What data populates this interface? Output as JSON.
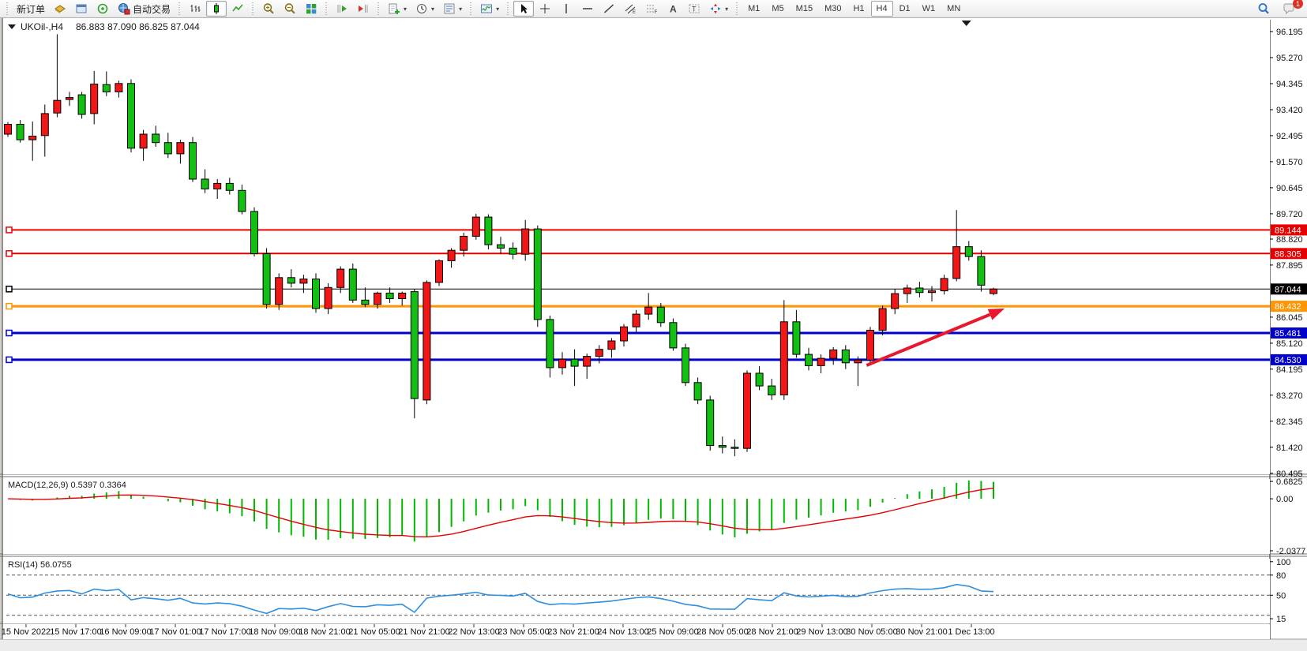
{
  "toolbar": {
    "groups": [
      {
        "items": [
          {
            "kind": "text",
            "label": "新订单",
            "name": "new-order-button"
          },
          {
            "kind": "icon",
            "icon": "market-watch",
            "name": "market-watch-button"
          },
          {
            "kind": "icon",
            "icon": "data-window",
            "name": "data-window-button"
          },
          {
            "kind": "icon",
            "icon": "signals",
            "name": "signals-button"
          },
          {
            "kind": "icontext",
            "icon": "autotrading",
            "label": "自动交易",
            "name": "autotrading-button"
          }
        ]
      },
      {
        "items": [
          {
            "kind": "icon",
            "icon": "bar-chart",
            "name": "bar-chart-button"
          },
          {
            "kind": "icon",
            "icon": "candlestick",
            "name": "candlestick-chart-button",
            "active": true
          },
          {
            "kind": "icon",
            "icon": "line-chart",
            "name": "line-chart-button"
          }
        ]
      },
      {
        "items": [
          {
            "kind": "icon",
            "icon": "zoom-in",
            "name": "zoom-in-button"
          },
          {
            "kind": "icon",
            "icon": "zoom-out",
            "name": "zoom-out-button"
          },
          {
            "kind": "icon",
            "icon": "tile-windows",
            "name": "tile-windows-button"
          }
        ]
      },
      {
        "items": [
          {
            "kind": "icon",
            "icon": "autoscroll",
            "name": "autoscroll-button"
          },
          {
            "kind": "icon",
            "icon": "chart-shift",
            "name": "chart-shift-button"
          }
        ]
      },
      {
        "items": [
          {
            "kind": "icon",
            "icon": "new-chart",
            "name": "new-chart-button",
            "dropdown": true
          },
          {
            "kind": "icon",
            "icon": "clock",
            "name": "periods-button",
            "dropdown": true
          },
          {
            "kind": "icon",
            "icon": "templates",
            "name": "templates-button",
            "dropdown": true
          }
        ]
      },
      {
        "items": [
          {
            "kind": "icon",
            "icon": "indicators",
            "name": "indicators-button",
            "dropdown": true
          }
        ]
      },
      {
        "items": [
          {
            "kind": "icon",
            "icon": "cursor",
            "name": "cursor-tool-button",
            "active": true
          },
          {
            "kind": "icon",
            "icon": "crosshair",
            "name": "crosshair-tool-button"
          },
          {
            "kind": "icon",
            "icon": "vertical-line",
            "name": "vertical-line-tool-button"
          },
          {
            "kind": "icon",
            "icon": "horizontal-line",
            "name": "horizontal-line-tool-button"
          },
          {
            "kind": "icon",
            "icon": "trendline",
            "name": "trendline-tool-button"
          },
          {
            "kind": "icon",
            "icon": "channel",
            "name": "channel-tool-button"
          },
          {
            "kind": "icon",
            "icon": "fibonacci",
            "name": "fibonacci-tool-button"
          },
          {
            "kind": "icon",
            "icon": "text",
            "name": "text-tool-button"
          },
          {
            "kind": "icon",
            "icon": "text-label",
            "name": "text-label-tool-button"
          },
          {
            "kind": "icon",
            "icon": "arrows",
            "name": "arrows-tool-button",
            "dropdown": true
          }
        ]
      },
      {
        "items": [
          {
            "kind": "tf",
            "label": "M1",
            "name": "timeframe-m1"
          },
          {
            "kind": "tf",
            "label": "M5",
            "name": "timeframe-m5"
          },
          {
            "kind": "tf",
            "label": "M15",
            "name": "timeframe-m15"
          },
          {
            "kind": "tf",
            "label": "M30",
            "name": "timeframe-m30"
          },
          {
            "kind": "tf",
            "label": "H1",
            "name": "timeframe-h1"
          },
          {
            "kind": "tf",
            "label": "H4",
            "name": "timeframe-h4",
            "active": true
          },
          {
            "kind": "tf",
            "label": "D1",
            "name": "timeframe-d1"
          },
          {
            "kind": "tf",
            "label": "W1",
            "name": "timeframe-w1"
          },
          {
            "kind": "tf",
            "label": "MN",
            "name": "timeframe-mn"
          }
        ]
      }
    ],
    "right": [
      {
        "kind": "icon",
        "icon": "search",
        "name": "search-button"
      },
      {
        "kind": "icon",
        "icon": "chat",
        "name": "chat-button",
        "badge": "1"
      }
    ]
  },
  "chart_window": {
    "symbol": "UKOil-,H4",
    "ohlc_text": "86.883 87.090 86.825 87.044"
  },
  "chart_data": {
    "type": "candlestick",
    "symbol": "UKOil-",
    "timeframe": "H4",
    "title": "UKOil-,H4 86.883 87.090 86.825 87.044",
    "ohlc_current": {
      "open": 86.883,
      "high": 87.09,
      "low": 86.825,
      "close": 87.044
    },
    "up_color": "#f21616",
    "down_color": "#12bf12",
    "ylim": [
      80.46,
      96.42
    ],
    "y_ticks": [
      96.195,
      95.27,
      94.345,
      93.42,
      92.495,
      91.57,
      90.645,
      89.72,
      88.82,
      87.895,
      86.045,
      85.12,
      84.195,
      83.27,
      82.345,
      81.42,
      80.495
    ],
    "x_labels": [
      "15 Nov 2022",
      "15 Nov 17:00",
      "16 Nov 09:00",
      "17 Nov 01:00",
      "17 Nov 17:00",
      "18 Nov 09:00",
      "18 Nov 21:00",
      "21 Nov 05:00",
      "21 Nov 21:00",
      "22 Nov 13:00",
      "23 Nov 05:00",
      "23 Nov 21:00",
      "24 Nov 13:00",
      "25 Nov 09:00",
      "28 Nov 05:00",
      "28 Nov 21:00",
      "29 Nov 13:00",
      "30 Nov 05:00",
      "30 Nov 21:00",
      "1 Dec 13:00"
    ],
    "candles": [
      [
        92.55,
        92.98,
        92.45,
        92.9
      ],
      [
        92.9,
        93.05,
        92.25,
        92.35
      ],
      [
        92.35,
        93.0,
        91.6,
        92.48
      ],
      [
        92.5,
        93.6,
        91.75,
        93.28
      ],
      [
        93.3,
        96.1,
        93.15,
        93.75
      ],
      [
        93.78,
        94.05,
        93.55,
        93.85
      ],
      [
        93.95,
        94.05,
        93.1,
        93.25
      ],
      [
        93.28,
        94.8,
        92.9,
        94.33
      ],
      [
        94.31,
        94.78,
        93.9,
        94.05
      ],
      [
        94.05,
        94.45,
        93.85,
        94.35
      ],
      [
        94.35,
        94.5,
        91.9,
        92.05
      ],
      [
        92.05,
        92.7,
        91.6,
        92.55
      ],
      [
        92.55,
        92.85,
        92.1,
        92.25
      ],
      [
        92.25,
        92.6,
        91.7,
        91.85
      ],
      [
        91.85,
        92.35,
        91.5,
        92.25
      ],
      [
        92.25,
        92.45,
        90.85,
        90.95
      ],
      [
        90.95,
        91.3,
        90.45,
        90.6
      ],
      [
        90.6,
        90.95,
        90.25,
        90.8
      ],
      [
        90.8,
        91.0,
        90.4,
        90.55
      ],
      [
        90.55,
        90.75,
        89.7,
        89.8
      ],
      [
        89.8,
        89.95,
        88.2,
        88.3
      ],
      [
        88.3,
        88.5,
        86.35,
        86.5
      ],
      [
        86.5,
        87.6,
        86.3,
        87.45
      ],
      [
        87.45,
        87.75,
        87.1,
        87.25
      ],
      [
        87.25,
        87.55,
        86.9,
        87.4
      ],
      [
        87.4,
        87.6,
        86.2,
        86.35
      ],
      [
        86.35,
        87.25,
        86.15,
        87.1
      ],
      [
        87.1,
        87.85,
        86.9,
        87.75
      ],
      [
        87.75,
        87.95,
        86.55,
        86.65
      ],
      [
        86.65,
        87.1,
        86.4,
        86.5
      ],
      [
        86.5,
        86.95,
        86.35,
        86.9
      ],
      [
        86.9,
        87.1,
        86.55,
        86.7
      ],
      [
        86.7,
        86.95,
        86.45,
        86.9
      ],
      [
        86.95,
        87.05,
        82.45,
        83.15
      ],
      [
        83.1,
        87.35,
        82.95,
        87.28
      ],
      [
        87.28,
        88.1,
        87.15,
        88.05
      ],
      [
        88.05,
        88.5,
        87.8,
        88.42
      ],
      [
        88.42,
        89.05,
        88.2,
        88.92
      ],
      [
        88.92,
        89.72,
        88.8,
        89.6
      ],
      [
        89.6,
        89.7,
        88.45,
        88.62
      ],
      [
        88.62,
        88.9,
        88.3,
        88.5
      ],
      [
        88.5,
        88.7,
        88.1,
        88.28
      ],
      [
        88.28,
        89.5,
        88.05,
        89.18
      ],
      [
        89.18,
        89.3,
        85.7,
        85.96
      ],
      [
        85.96,
        86.1,
        83.9,
        84.25
      ],
      [
        84.25,
        84.8,
        84.0,
        84.55
      ],
      [
        84.55,
        84.9,
        83.6,
        84.3
      ],
      [
        84.3,
        84.75,
        83.85,
        84.65
      ],
      [
        84.65,
        85.05,
        84.4,
        84.9
      ],
      [
        84.9,
        85.3,
        84.6,
        85.2
      ],
      [
        85.2,
        85.8,
        85.0,
        85.7
      ],
      [
        85.7,
        86.3,
        85.5,
        86.15
      ],
      [
        86.15,
        86.9,
        85.95,
        86.4
      ],
      [
        86.4,
        86.55,
        85.7,
        85.85
      ],
      [
        85.85,
        86.0,
        84.85,
        84.95
      ],
      [
        84.95,
        85.1,
        83.6,
        83.72
      ],
      [
        83.72,
        83.9,
        82.95,
        83.1
      ],
      [
        83.1,
        83.25,
        81.3,
        81.48
      ],
      [
        81.48,
        81.8,
        81.2,
        81.42
      ],
      [
        81.42,
        81.7,
        81.1,
        81.38
      ],
      [
        81.38,
        84.15,
        81.25,
        84.05
      ],
      [
        84.05,
        84.3,
        83.45,
        83.6
      ],
      [
        83.6,
        83.85,
        83.1,
        83.28
      ],
      [
        83.28,
        86.65,
        83.1,
        85.88
      ],
      [
        85.88,
        86.3,
        84.6,
        84.72
      ],
      [
        84.72,
        84.95,
        84.15,
        84.32
      ],
      [
        84.32,
        84.72,
        84.05,
        84.58
      ],
      [
        84.58,
        84.98,
        84.35,
        84.88
      ],
      [
        84.88,
        85.05,
        84.2,
        84.42
      ],
      [
        84.42,
        84.65,
        83.6,
        84.52
      ],
      [
        84.52,
        85.7,
        84.42,
        85.58
      ],
      [
        85.58,
        86.45,
        85.4,
        86.35
      ],
      [
        86.35,
        87.05,
        86.15,
        86.88
      ],
      [
        86.88,
        87.2,
        86.55,
        87.08
      ],
      [
        87.08,
        87.3,
        86.75,
        86.92
      ],
      [
        86.92,
        87.15,
        86.6,
        86.98
      ],
      [
        86.98,
        87.55,
        86.85,
        87.42
      ],
      [
        87.42,
        89.85,
        87.32,
        88.55
      ],
      [
        88.55,
        88.75,
        88.05,
        88.2
      ],
      [
        88.2,
        88.42,
        86.95,
        87.18
      ],
      [
        86.883,
        87.09,
        86.825,
        87.044
      ]
    ],
    "hlines": [
      {
        "price": 89.144,
        "label": "89.144",
        "color": "#e60000",
        "width": 2
      },
      {
        "price": 88.305,
        "label": "88.305",
        "color": "#e60000",
        "width": 2
      },
      {
        "price": 87.044,
        "label": "87.044",
        "color": "#000000",
        "width": 1
      },
      {
        "price": 86.432,
        "label": "86.432",
        "color": "#ff9500",
        "width": 3
      },
      {
        "price": 85.481,
        "label": "85.481",
        "color": "#0000cd",
        "width": 3
      },
      {
        "price": 84.53,
        "label": "84.530",
        "color": "#0000cd",
        "width": 3
      }
    ],
    "trend_arrow": {
      "x1_bar": 69.7,
      "price1": 84.33,
      "x2_bar": 80.9,
      "price2": 86.35,
      "color": "#e8192c"
    },
    "shift_marker_bar": 77.8,
    "indicators": [
      {
        "name": "MACD",
        "params": [
          12,
          26,
          9
        ],
        "label": "MACD(12,26,9) 0.5397 0.3364",
        "macd_value": 0.5397,
        "signal_value": 0.3364,
        "y_ticks": [
          0.6825,
          0.0,
          -2.0377
        ],
        "ylim": [
          -2.16,
          0.87
        ],
        "histogram_color": "#00b800",
        "signal_color": "#e60000"
      },
      {
        "name": "RSI",
        "params": [
          14
        ],
        "label": "RSI(14) 56.0755",
        "value": 56.0755,
        "y_ticks": [
          100,
          80,
          50,
          15
        ],
        "levels": [
          80,
          50,
          20
        ],
        "ylim": [
          8,
          108
        ],
        "line_color": "#2e8fde",
        "level_color": "#555555"
      }
    ]
  }
}
